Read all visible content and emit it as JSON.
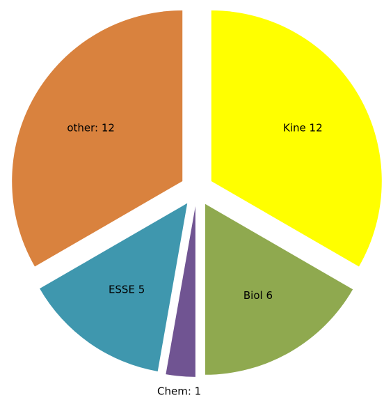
{
  "chart_data": {
    "type": "pie",
    "values": [
      12,
      6,
      1,
      5,
      12
    ],
    "value_labels": [
      "Kine 12",
      "Biol 6",
      "Chem: 1",
      "ESSE 5",
      "other: 12"
    ],
    "colors": [
      "#ffff00",
      "#8fa94f",
      "#705492",
      "#3f97ae",
      "#d9823e"
    ]
  }
}
